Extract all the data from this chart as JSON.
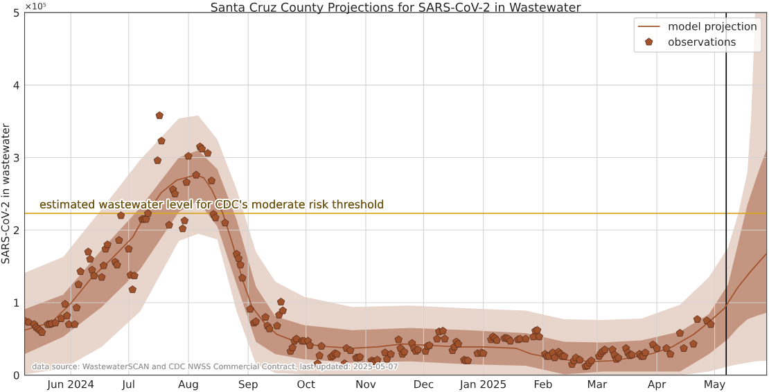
{
  "chart_data": {
    "type": "line",
    "title": "Santa Cruz County Projections for SARS-CoV-2 in Wastewater",
    "ylabel": "SARS-CoV-2 in wastewater",
    "xlim": [
      "2024-05-08",
      "2025-05-28"
    ],
    "ylim": [
      0,
      5
    ],
    "xticks": [
      {
        "value": "2024-06-01",
        "label": "Jun 2024"
      },
      {
        "value": "2024-07-01",
        "label": "Jul"
      },
      {
        "value": "2024-08-01",
        "label": "Aug"
      },
      {
        "value": "2024-09-01",
        "label": "Sep"
      },
      {
        "value": "2024-10-01",
        "label": "Oct"
      },
      {
        "value": "2024-11-01",
        "label": "Nov"
      },
      {
        "value": "2024-12-01",
        "label": "Dec"
      },
      {
        "value": "2025-01-01",
        "label": "Jan 2025"
      },
      {
        "value": "2025-02-01",
        "label": "Feb"
      },
      {
        "value": "2025-03-01",
        "label": "Mar"
      },
      {
        "value": "2025-04-01",
        "label": "Apr"
      },
      {
        "value": "2025-05-01",
        "label": "May"
      }
    ],
    "yticks": [
      0,
      1,
      2,
      3,
      4,
      5
    ],
    "grid": true,
    "legend": "top right",
    "annotations": [
      "data source: WastewaterSCAN and CDC NWSS Commercial Contract, last updated: 2025-05-07",
      "×10⁵"
    ],
    "ref_lines": [
      {
        "axis": "y",
        "value": 2.23,
        "label": "estimated wastewater level for CDC's moderate risk threshold",
        "color": "#daa520"
      },
      {
        "axis": "x",
        "value": "2025-05-07",
        "color": "#000000"
      }
    ],
    "series": [
      {
        "type": "line",
        "color": "#e8d5cc",
        "x": [
          "2024-05-08",
          "2024-05-28",
          "2024-06-17",
          "2024-07-07",
          "2024-07-27",
          "2024-08-06",
          "2024-08-16",
          "2024-08-26",
          "2024-09-05",
          "2024-09-15",
          "2024-09-30",
          "2024-10-25",
          "2024-11-24",
          "2024-12-24",
          "2025-01-23",
          "2025-02-12",
          "2025-03-04",
          "2025-03-24",
          "2025-04-13",
          "2025-04-28",
          "2025-05-08",
          "2025-05-13",
          "2025-05-18",
          "2025-05-20",
          "2025-05-22",
          "2025-05-28"
        ],
        "values": [
          null,
          null,
          null,
          null,
          null,
          null,
          null,
          null,
          null,
          null,
          null,
          null,
          null,
          null,
          null,
          null,
          null,
          null,
          null,
          null,
          null,
          null,
          null,
          null,
          null,
          null
        ],
        "lower": [
          0.01,
          0.09,
          0.39,
          0.88,
          1.85,
          1.95,
          1.87,
          0.88,
          0.15,
          0.03,
          0.01,
          0,
          0,
          0,
          0,
          0,
          0,
          0,
          0,
          0.05,
          0.12,
          0.15,
          0.17,
          0.18,
          0.19,
          0.2
        ],
        "upper": [
          1.41,
          1.63,
          2.29,
          2.97,
          3.54,
          3.58,
          3.25,
          2.56,
          1.7,
          1.29,
          1.08,
          0.94,
          0.96,
          0.92,
          0.89,
          0.77,
          0.76,
          0.78,
          0.97,
          1.35,
          1.76,
          2.2,
          2.8,
          3.6,
          5,
          5
        ]
      },
      {
        "type": "line",
        "color": "#c49580",
        "x": [
          "2024-05-08",
          "2024-05-28",
          "2024-06-17",
          "2024-07-07",
          "2024-07-27",
          "2024-08-06",
          "2024-08-16",
          "2024-08-26",
          "2024-09-05",
          "2024-09-15",
          "2024-09-30",
          "2024-10-25",
          "2024-11-24",
          "2024-12-24",
          "2025-01-23",
          "2025-02-12",
          "2025-03-04",
          "2025-03-24",
          "2025-04-13",
          "2025-04-28",
          "2025-05-08",
          "2025-05-13",
          "2025-05-18",
          "2025-05-23",
          "2025-05-28"
        ],
        "values": [
          null,
          null,
          null,
          null,
          null,
          null,
          null,
          null,
          null,
          null,
          null,
          null,
          null,
          null,
          null,
          null,
          null,
          null,
          null,
          null,
          null,
          null,
          null,
          null,
          null
        ],
        "lower": [
          0.29,
          0.53,
          0.94,
          1.46,
          2.25,
          2.4,
          2.05,
          1.25,
          0.46,
          0.29,
          0.22,
          0.17,
          0.19,
          0.15,
          0.13,
          0.01,
          0.05,
          0.05,
          0.05,
          0.29,
          0.5,
          0.65,
          0.77,
          0.82,
          0.86
        ],
        "upper": [
          0.91,
          1.11,
          1.73,
          2.31,
          3,
          3.1,
          2.84,
          2.14,
          1.22,
          0.81,
          0.69,
          0.62,
          0.65,
          0.62,
          0.58,
          0.46,
          0.45,
          0.48,
          0.6,
          0.84,
          1.25,
          1.8,
          2.35,
          2.75,
          3.12
        ]
      },
      {
        "name": "model projection",
        "color": "#a0522d",
        "x": [
          "2024-05-08",
          "2024-05-22",
          "2024-06-01",
          "2024-06-12",
          "2024-06-22",
          "2024-07-03",
          "2024-07-09",
          "2024-07-18",
          "2024-07-26",
          "2024-08-05",
          "2024-08-09",
          "2024-08-13",
          "2024-08-19",
          "2024-08-24",
          "2024-08-29",
          "2024-09-03",
          "2024-09-10",
          "2024-09-16",
          "2024-09-24",
          "2024-10-08",
          "2024-10-25",
          "2024-11-07",
          "2024-11-20",
          "2024-12-04",
          "2024-12-19",
          "2025-01-01",
          "2025-01-18",
          "2025-01-26",
          "2025-02-03",
          "2025-02-16",
          "2025-03-01",
          "2025-03-10",
          "2025-03-30",
          "2025-04-09",
          "2025-04-20",
          "2025-04-28",
          "2025-05-06",
          "2025-05-13",
          "2025-05-20",
          "2025-05-28"
        ],
        "values": [
          0.62,
          0.73,
          0.99,
          1.35,
          1.6,
          1.9,
          2.18,
          2.52,
          2.69,
          2.76,
          2.72,
          2.56,
          2.22,
          1.8,
          1.32,
          0.94,
          0.7,
          0.56,
          0.48,
          0.4,
          0.37,
          0.39,
          0.43,
          0.41,
          0.39,
          0.39,
          0.37,
          0.29,
          0.25,
          0.2,
          0.19,
          0.2,
          0.3,
          0.39,
          0.56,
          0.73,
          0.92,
          1.21,
          1.44,
          1.68
        ]
      },
      {
        "name": "observations",
        "type": "scatter",
        "color": "#a0522d",
        "x": [
          "2024-05-08",
          "2024-05-10",
          "2024-05-13",
          "2024-05-14",
          "2024-05-15",
          "2024-05-16",
          "2024-05-17",
          "2024-05-20",
          "2024-05-21",
          "2024-05-22",
          "2024-05-24",
          "2024-05-27",
          "2024-05-29",
          "2024-05-30",
          "2024-05-31",
          "2024-06-03",
          "2024-06-04",
          "2024-06-05",
          "2024-06-06",
          "2024-06-10",
          "2024-06-11",
          "2024-06-12",
          "2024-06-13",
          "2024-06-17",
          "2024-06-18",
          "2024-06-19",
          "2024-06-20",
          "2024-06-24",
          "2024-06-25",
          "2024-06-26",
          "2024-06-27",
          "2024-07-01",
          "2024-07-02",
          "2024-07-03",
          "2024-07-04",
          "2024-07-08",
          "2024-07-09",
          "2024-07-10",
          "2024-07-11",
          "2024-07-16",
          "2024-07-17",
          "2024-07-18",
          "2024-07-22",
          "2024-07-24",
          "2024-07-25",
          "2024-07-29",
          "2024-07-30",
          "2024-07-31",
          "2024-08-01",
          "2024-08-05",
          "2024-08-07",
          "2024-08-08",
          "2024-08-11",
          "2024-08-13",
          "2024-08-14",
          "2024-08-15",
          "2024-08-20",
          "2024-08-26",
          "2024-08-27",
          "2024-08-28",
          "2024-08-29",
          "2024-09-02",
          "2024-09-04",
          "2024-09-05",
          "2024-09-10",
          "2024-09-11",
          "2024-09-12",
          "2024-09-16",
          "2024-09-17",
          "2024-09-18",
          "2024-09-19",
          "2024-09-23",
          "2024-09-24",
          "2024-09-25",
          "2024-09-26",
          "2024-09-29",
          "2024-09-30",
          "2024-10-02",
          "2024-10-03",
          "2024-10-07",
          "2024-10-08",
          "2024-10-09",
          "2024-10-14",
          "2024-10-15",
          "2024-10-16",
          "2024-10-17",
          "2024-10-21",
          "2024-10-22",
          "2024-10-24",
          "2024-10-27",
          "2024-10-28",
          "2024-10-29",
          "2024-11-04",
          "2024-11-05",
          "2024-11-06",
          "2024-11-07",
          "2024-11-11",
          "2024-11-12",
          "2024-11-14",
          "2024-11-18",
          "2024-11-19",
          "2024-11-20",
          "2024-11-21",
          "2024-11-25",
          "2024-11-26",
          "2024-11-27",
          "2024-11-28",
          "2024-12-02",
          "2024-12-03",
          "2024-12-04",
          "2024-12-08",
          "2024-12-09",
          "2024-12-11",
          "2024-12-12",
          "2024-12-16",
          "2024-12-17",
          "2024-12-18",
          "2024-12-19",
          "2024-12-22",
          "2024-12-23",
          "2024-12-24",
          "2024-12-29",
          "2024-12-31",
          "2025-01-01",
          "2025-01-05",
          "2025-01-06",
          "2025-01-07",
          "2025-01-08",
          "2025-01-12",
          "2025-01-13",
          "2025-01-14",
          "2025-01-15",
          "2025-01-19",
          "2025-01-20",
          "2025-01-23",
          "2025-01-27",
          "2025-01-28",
          "2025-01-29",
          "2025-01-30",
          "2025-02-02",
          "2025-02-03",
          "2025-02-04",
          "2025-02-06",
          "2025-02-07",
          "2025-02-09",
          "2025-02-10",
          "2025-02-11",
          "2025-02-12",
          "2025-02-16",
          "2025-02-17",
          "2025-02-18",
          "2025-02-20",
          "2025-02-23",
          "2025-02-24",
          "2025-02-25",
          "2025-02-26",
          "2025-03-02",
          "2025-03-03",
          "2025-03-04",
          "2025-03-05",
          "2025-03-09",
          "2025-03-10",
          "2025-03-11",
          "2025-03-12",
          "2025-03-16",
          "2025-03-17",
          "2025-03-18",
          "2025-03-19",
          "2025-03-23",
          "2025-03-24",
          "2025-03-25",
          "2025-03-26",
          "2025-03-30",
          "2025-04-01",
          "2025-04-06",
          "2025-04-08",
          "2025-04-13",
          "2025-04-15",
          "2025-04-20",
          "2025-04-22",
          "2025-04-27",
          "2025-04-29"
        ],
        "values": [
          0.75,
          0.73,
          0.7,
          0.66,
          0.64,
          0.62,
          0.59,
          0.7,
          0.7,
          0.71,
          0.72,
          0.78,
          0.98,
          0.82,
          0.7,
          0.7,
          0.93,
          1.25,
          1.43,
          1.7,
          1.6,
          1.45,
          1.37,
          1.35,
          1.51,
          1.74,
          1.8,
          1.56,
          1.52,
          1.86,
          2.2,
          1.74,
          1.38,
          1.18,
          1.37,
          2.15,
          2.15,
          2.15,
          2.23,
          2.96,
          3.58,
          3.23,
          2.07,
          2.56,
          2.5,
          2.02,
          2.13,
          2.66,
          3.02,
          2.76,
          3.15,
          3.12,
          3.06,
          2.68,
          2.22,
          2.17,
          2.1,
          1.67,
          1.61,
          1.52,
          1.34,
          0.91,
          0.72,
          0.74,
          0.8,
          0.68,
          0.64,
          0.68,
          0.83,
          1.01,
          0.89,
          0.33,
          0.38,
          0.47,
          0.5,
          0.47,
          0.47,
          0.47,
          0.41,
          0.16,
          0.27,
          0.4,
          0.25,
          0.27,
          0.3,
          0.29,
          0.16,
          0.37,
          0.34,
          0.24,
          0.24,
          0.25,
          0.2,
          0.19,
          0.19,
          0.21,
          0.31,
          0.22,
          0.29,
          0.49,
          0.37,
          0.29,
          0.32,
          0.44,
          0.37,
          0.33,
          0.35,
          0.33,
          0.4,
          0.41,
          0.5,
          0.6,
          0.61,
          0.5,
          0.34,
          0.39,
          0.46,
          0.43,
          0.21,
          0.2,
          0.2,
          0.3,
          0.31,
          0.3,
          0.49,
          0.53,
          0.51,
          0.48,
          0.51,
          0.51,
          0.5,
          0.47,
          0.49,
          0.5,
          0.5,
          0.53,
          0.61,
          0.62,
          0.53,
          0.29,
          0.26,
          0.26,
          0.31,
          0.24,
          0.32,
          0.29,
          0.26,
          0.26,
          0.15,
          0.2,
          0.24,
          0.21,
          0.12,
          0.13,
          0.17,
          0.2,
          0.26,
          0.3,
          0.33,
          0.35,
          0.35,
          0.28,
          0.22,
          0.24,
          0.37,
          0.31,
          0.27,
          0.28,
          0.29,
          0.26,
          0.26,
          0.31,
          0.42,
          0.37,
          0.37,
          0.29,
          0.58,
          0.37,
          0.43,
          0.77,
          0.75,
          0.7
        ]
      }
    ]
  }
}
